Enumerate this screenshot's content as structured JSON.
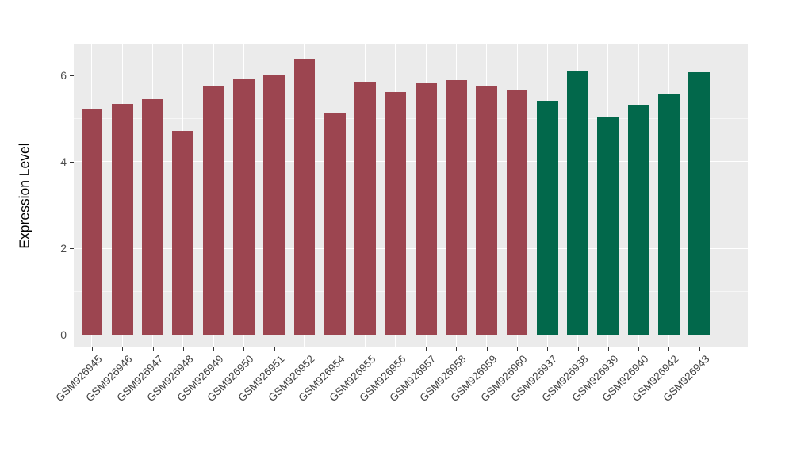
{
  "chart_data": {
    "type": "bar",
    "title": "",
    "xlabel": "",
    "ylabel": "Expression Level",
    "yticks": [
      0,
      2,
      4,
      6
    ],
    "minor_yticks": [
      1,
      3,
      5
    ],
    "ylim": [
      -0.29,
      6.71
    ],
    "grid": "on",
    "legend": "none",
    "panel_background": "#EBEBEB",
    "categories": [
      "GSM926945",
      "GSM926946",
      "GSM926947",
      "GSM926948",
      "GSM926949",
      "GSM926950",
      "GSM926951",
      "GSM926952",
      "GSM926954",
      "GSM926955",
      "GSM926956",
      "GSM926957",
      "GSM926958",
      "GSM926959",
      "GSM926960",
      "GSM926937",
      "GSM926938",
      "GSM926939",
      "GSM926940",
      "GSM926942",
      "GSM926943"
    ],
    "values": [
      5.22,
      5.33,
      5.45,
      4.71,
      5.76,
      5.92,
      6.01,
      6.38,
      5.11,
      5.85,
      5.61,
      5.81,
      5.88,
      5.75,
      5.66,
      5.4,
      6.08,
      5.03,
      5.29,
      5.55,
      6.06
    ],
    "bar_groups": [
      "group1",
      "group1",
      "group1",
      "group1",
      "group1",
      "group1",
      "group1",
      "group1",
      "group1",
      "group1",
      "group1",
      "group1",
      "group1",
      "group1",
      "group1",
      "group2",
      "group2",
      "group2",
      "group2",
      "group2",
      "group2"
    ],
    "group_colors": {
      "group1": "#9C4550",
      "group2": "#02684B"
    }
  }
}
